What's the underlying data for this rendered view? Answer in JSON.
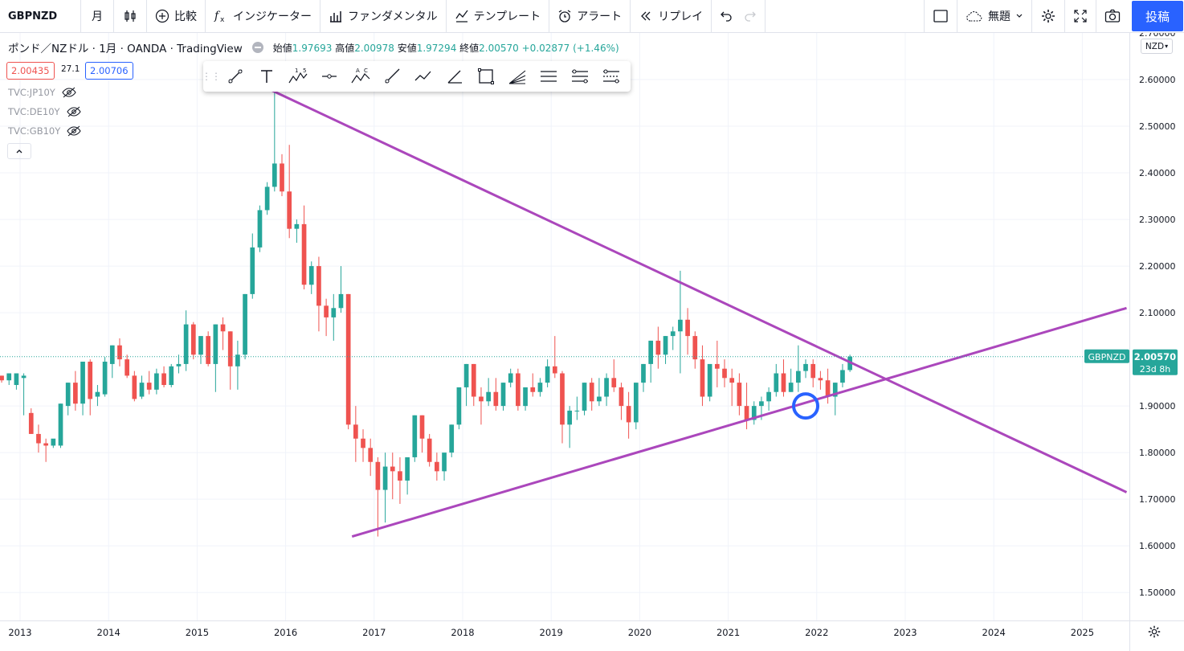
{
  "toolbar": {
    "symbol": "GBPNZD",
    "interval": "月",
    "compare": "比較",
    "indicators": "インジケーター",
    "fundamentals": "ファンダメンタル",
    "templates": "テンプレート",
    "alert": "アラート",
    "replay": "リプレイ",
    "layout_name": "無題",
    "publish": "投稿"
  },
  "legend": {
    "title": "ポンド／NZドル · 1月 · OANDA · TradingView",
    "open_label": "始値",
    "open": "1.97693",
    "high_label": "高値",
    "high": "2.00978",
    "low_label": "安値",
    "low": "1.97294",
    "close_label": "終値",
    "close": "2.00570",
    "change": "+0.02877 (+1.46%)",
    "sell_price": "2.00435",
    "spread": "27.1",
    "buy_price": "2.00706"
  },
  "studies": [
    "TVC:JP10Y",
    "TVC:DE10Y",
    "TVC:GB10Y"
  ],
  "currency_button": "NZD",
  "price_axis": {
    "ticks": [
      "2.60000",
      "2.50000",
      "2.40000",
      "2.30000",
      "2.20000",
      "2.10000",
      "1.90000",
      "1.80000",
      "1.70000",
      "1.60000",
      "1.50000"
    ],
    "top_partial": "2.70000",
    "last_symbol": "GBPNZD",
    "last_price": "2.00570",
    "countdown": "23d 8h"
  },
  "time_axis": [
    "2013",
    "2014",
    "2015",
    "2016",
    "2017",
    "2018",
    "2019",
    "2020",
    "2021",
    "2022",
    "2023",
    "2024",
    "2025"
  ],
  "colors": {
    "up": "#26a69a",
    "down": "#ef5350",
    "trendline": "#ab47bc",
    "circle": "#2962ff",
    "accent": "#2962ff"
  },
  "chart_data": {
    "type": "candlestick",
    "timeframe": "1M",
    "ylim": [
      1.44,
      2.7
    ],
    "x_start_year": 2012.75,
    "candles": [
      [
        1.965,
        1.965,
        1.955,
        1.95
      ],
      [
        1.955,
        1.97,
        1.97,
        1.945
      ],
      [
        1.945,
        1.97,
        1.97,
        1.935
      ],
      [
        1.96,
        1.97,
        1.965,
        1.88
      ],
      [
        1.885,
        1.895,
        1.84,
        1.84
      ],
      [
        1.84,
        1.86,
        1.82,
        1.8
      ],
      [
        1.82,
        1.83,
        1.815,
        1.78
      ],
      [
        1.815,
        1.825,
        1.83,
        1.81
      ],
      [
        1.815,
        1.905,
        1.905,
        1.81
      ],
      [
        1.9,
        1.95,
        1.95,
        1.88
      ],
      [
        1.95,
        1.975,
        1.905,
        1.89
      ],
      [
        1.905,
        1.995,
        1.995,
        1.88
      ],
      [
        1.995,
        2.0,
        1.915,
        1.88
      ],
      [
        1.92,
        1.945,
        1.93,
        1.9
      ],
      [
        1.925,
        2.005,
        1.995,
        1.92
      ],
      [
        1.99,
        2.03,
        2.03,
        1.96
      ],
      [
        2.03,
        2.045,
        2.0,
        1.985
      ],
      [
        2.0,
        2.01,
        1.965,
        1.96
      ],
      [
        1.965,
        1.975,
        1.915,
        1.91
      ],
      [
        1.92,
        1.965,
        1.95,
        1.915
      ],
      [
        1.95,
        1.975,
        1.935,
        1.925
      ],
      [
        1.935,
        1.98,
        1.97,
        1.925
      ],
      [
        1.97,
        1.985,
        1.945,
        1.94
      ],
      [
        1.945,
        1.99,
        1.985,
        1.94
      ],
      [
        1.985,
        2.01,
        1.99,
        1.97
      ],
      [
        1.99,
        2.105,
        2.075,
        1.975
      ],
      [
        2.075,
        2.08,
        2.01,
        2.0
      ],
      [
        2.01,
        2.045,
        2.05,
        1.99
      ],
      [
        2.05,
        2.06,
        1.99,
        1.985
      ],
      [
        1.99,
        2.075,
        2.075,
        1.93
      ],
      [
        2.075,
        2.09,
        2.06,
        2.02
      ],
      [
        2.06,
        2.06,
        1.985,
        1.935
      ],
      [
        1.985,
        2.04,
        2.01,
        1.935
      ],
      [
        2.01,
        2.14,
        2.14,
        2.0
      ],
      [
        2.14,
        2.27,
        2.24,
        2.13
      ],
      [
        2.24,
        2.33,
        2.32,
        2.23
      ],
      [
        2.32,
        2.38,
        2.37,
        2.31
      ],
      [
        2.37,
        2.6,
        2.42,
        2.36
      ],
      [
        2.42,
        2.44,
        2.36,
        2.35
      ],
      [
        2.36,
        2.46,
        2.28,
        2.26
      ],
      [
        2.28,
        2.3,
        2.29,
        2.25
      ],
      [
        2.29,
        2.33,
        2.16,
        2.15
      ],
      [
        2.16,
        2.21,
        2.2,
        2.14
      ],
      [
        2.2,
        2.22,
        2.115,
        2.06
      ],
      [
        2.115,
        2.13,
        2.09,
        2.05
      ],
      [
        2.09,
        2.14,
        2.11,
        2.04
      ],
      [
        2.11,
        2.2,
        2.14,
        2.1
      ],
      [
        2.14,
        2.14,
        1.86,
        1.85
      ],
      [
        1.86,
        1.9,
        1.83,
        1.78
      ],
      [
        1.83,
        1.85,
        1.81,
        1.78
      ],
      [
        1.81,
        1.83,
        1.78,
        1.75
      ],
      [
        1.78,
        1.79,
        1.72,
        1.62
      ],
      [
        1.72,
        1.8,
        1.77,
        1.65
      ],
      [
        1.77,
        1.8,
        1.76,
        1.7
      ],
      [
        1.76,
        1.79,
        1.74,
        1.69
      ],
      [
        1.74,
        1.79,
        1.79,
        1.71
      ],
      [
        1.79,
        1.88,
        1.88,
        1.78
      ],
      [
        1.88,
        1.88,
        1.83,
        1.8
      ],
      [
        1.83,
        1.84,
        1.78,
        1.77
      ],
      [
        1.78,
        1.8,
        1.76,
        1.74
      ],
      [
        1.76,
        1.77,
        1.8,
        1.74
      ],
      [
        1.8,
        1.86,
        1.86,
        1.79
      ],
      [
        1.86,
        1.88,
        1.94,
        1.85
      ],
      [
        1.94,
        1.99,
        1.99,
        1.9
      ],
      [
        1.99,
        1.99,
        1.92,
        1.9
      ],
      [
        1.92,
        1.94,
        1.91,
        1.86
      ],
      [
        1.91,
        1.96,
        1.93,
        1.9
      ],
      [
        1.93,
        1.96,
        1.9,
        1.89
      ],
      [
        1.9,
        1.95,
        1.95,
        1.89
      ],
      [
        1.95,
        1.98,
        1.97,
        1.94
      ],
      [
        1.97,
        1.98,
        1.9,
        1.89
      ],
      [
        1.9,
        1.93,
        1.94,
        1.89
      ],
      [
        1.94,
        1.97,
        1.93,
        1.92
      ],
      [
        1.93,
        1.96,
        1.95,
        1.92
      ],
      [
        1.95,
        2.0,
        1.985,
        1.94
      ],
      [
        1.985,
        2.05,
        1.97,
        1.96
      ],
      [
        1.97,
        1.975,
        1.86,
        1.82
      ],
      [
        1.86,
        1.9,
        1.89,
        1.81
      ],
      [
        1.89,
        1.92,
        1.89,
        1.87
      ],
      [
        1.89,
        1.95,
        1.95,
        1.88
      ],
      [
        1.95,
        1.96,
        1.91,
        1.89
      ],
      [
        1.91,
        1.96,
        1.92,
        1.9
      ],
      [
        1.92,
        1.97,
        1.96,
        1.9
      ],
      [
        1.96,
        2.0,
        1.94,
        1.93
      ],
      [
        1.94,
        1.95,
        1.9,
        1.87
      ],
      [
        1.9,
        1.93,
        1.865,
        1.83
      ],
      [
        1.865,
        1.95,
        1.95,
        1.85
      ],
      [
        1.95,
        1.99,
        1.99,
        1.93
      ],
      [
        1.99,
        2.04,
        2.04,
        1.95
      ],
      [
        2.04,
        2.07,
        2.01,
        1.98
      ],
      [
        2.01,
        2.05,
        2.05,
        1.99
      ],
      [
        2.05,
        2.07,
        2.06,
        2.02
      ],
      [
        2.06,
        2.19,
        2.085,
        1.97
      ],
      [
        2.085,
        2.11,
        2.05,
        2.01
      ],
      [
        2.05,
        2.06,
        2.0,
        1.98
      ],
      [
        2.0,
        2.03,
        1.92,
        1.9
      ],
      [
        1.92,
        1.98,
        1.99,
        1.91
      ],
      [
        1.99,
        2.04,
        1.98,
        1.94
      ],
      [
        1.98,
        2.0,
        1.96,
        1.94
      ],
      [
        1.96,
        1.98,
        1.95,
        1.9
      ],
      [
        1.95,
        1.97,
        1.9,
        1.88
      ],
      [
        1.9,
        1.95,
        1.87,
        1.85
      ],
      [
        1.87,
        1.91,
        1.9,
        1.86
      ],
      [
        1.9,
        1.92,
        1.91,
        1.87
      ],
      [
        1.91,
        1.94,
        1.93,
        1.89
      ],
      [
        1.93,
        1.99,
        1.97,
        1.92
      ],
      [
        1.97,
        2.0,
        1.93,
        1.92
      ],
      [
        1.93,
        1.98,
        1.95,
        1.93
      ],
      [
        1.95,
        2.03,
        1.975,
        1.93
      ],
      [
        1.975,
        2.0,
        1.99,
        1.96
      ],
      [
        1.99,
        2.0,
        1.96,
        1.94
      ],
      [
        1.96,
        1.975,
        1.955,
        1.935
      ],
      [
        1.955,
        1.98,
        1.92,
        1.905
      ],
      [
        1.92,
        1.95,
        1.95,
        1.88
      ],
      [
        1.95,
        1.99,
        1.977,
        1.94
      ],
      [
        1.977,
        2.01,
        2.006,
        1.973
      ]
    ],
    "trendlines": [
      {
        "from": [
          "2015-08",
          2.6
        ],
        "to": [
          "2025-07",
          1.715
        ]
      },
      {
        "from": [
          "2016-10",
          1.62
        ],
        "to": [
          "2025-07",
          2.11
        ]
      }
    ],
    "annotation": {
      "type": "circle",
      "at": [
        "2021-11",
        1.9
      ]
    },
    "last_price": 2.0057
  }
}
